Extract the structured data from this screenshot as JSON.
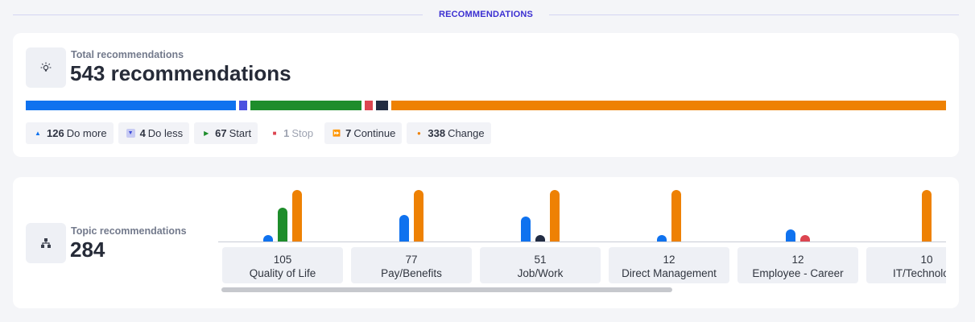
{
  "section": {
    "title": "RECOMMENDATIONS"
  },
  "total": {
    "label": "Total recommendations",
    "value": "543 recommendations",
    "icon": "lightbulb-icon",
    "breakdown": [
      {
        "key": "do-more",
        "count": "126",
        "label": "Do more",
        "color": "#0f72ef",
        "icon": "triangle-up-icon",
        "glyph": "▲",
        "muted": false,
        "amount": 126
      },
      {
        "key": "do-less",
        "count": "4",
        "label": "Do less",
        "color": "#4b50e0",
        "icon": "triangle-down-icon",
        "glyph": "▼",
        "muted": false,
        "amount": 4
      },
      {
        "key": "start",
        "count": "67",
        "label": "Start",
        "color": "#1e8d2b",
        "icon": "play-icon",
        "glyph": "▶",
        "muted": false,
        "amount": 67
      },
      {
        "key": "stop",
        "count": "1",
        "label": "Stop",
        "color": "#dc4550",
        "icon": "stop-square-icon",
        "glyph": "■",
        "muted": true,
        "amount": 1
      },
      {
        "key": "continue",
        "count": "7",
        "label": "Continue",
        "color": "#222c43",
        "icon": "fast-forward-icon",
        "glyph": "⏩",
        "muted": false,
        "amount": 7
      },
      {
        "key": "change",
        "count": "338",
        "label": "Change",
        "color": "#ee8103",
        "icon": "dot-icon",
        "glyph": "●",
        "muted": false,
        "amount": 338
      }
    ]
  },
  "topics": {
    "label": "Topic recommendations",
    "value": "284",
    "icon": "hierarchy-icon",
    "categories": [
      {
        "count": "105",
        "name": "Quality of Life"
      },
      {
        "count": "77",
        "name": "Pay/Benefits"
      },
      {
        "count": "51",
        "name": "Job/Work"
      },
      {
        "count": "12",
        "name": "Direct Management"
      },
      {
        "count": "12",
        "name": "Employee - Career"
      },
      {
        "count": "10",
        "name": "IT/Technology"
      }
    ]
  },
  "chart_data": {
    "type": "bar",
    "categories": [
      "Quality of Life",
      "Pay/Benefits",
      "Job/Work",
      "Direct Management",
      "Employee - Career",
      "IT/Technology"
    ],
    "series": [
      {
        "key": "do-more",
        "color": "#0f72ef",
        "values": [
          6,
          26,
          24,
          6,
          12,
          0
        ]
      },
      {
        "key": "start",
        "color": "#1e8d2b",
        "values": [
          33,
          0,
          0,
          0,
          0,
          0
        ]
      },
      {
        "key": "continue",
        "color": "#222c43",
        "values": [
          0,
          0,
          6,
          0,
          0,
          0
        ]
      },
      {
        "key": "stop",
        "color": "#dc4550",
        "values": [
          0,
          0,
          0,
          0,
          6,
          0
        ]
      },
      {
        "key": "change",
        "color": "#ee8103",
        "values": [
          50,
          50,
          50,
          50,
          0,
          50
        ]
      }
    ],
    "ylim": [
      0,
      50
    ],
    "grid": false
  }
}
